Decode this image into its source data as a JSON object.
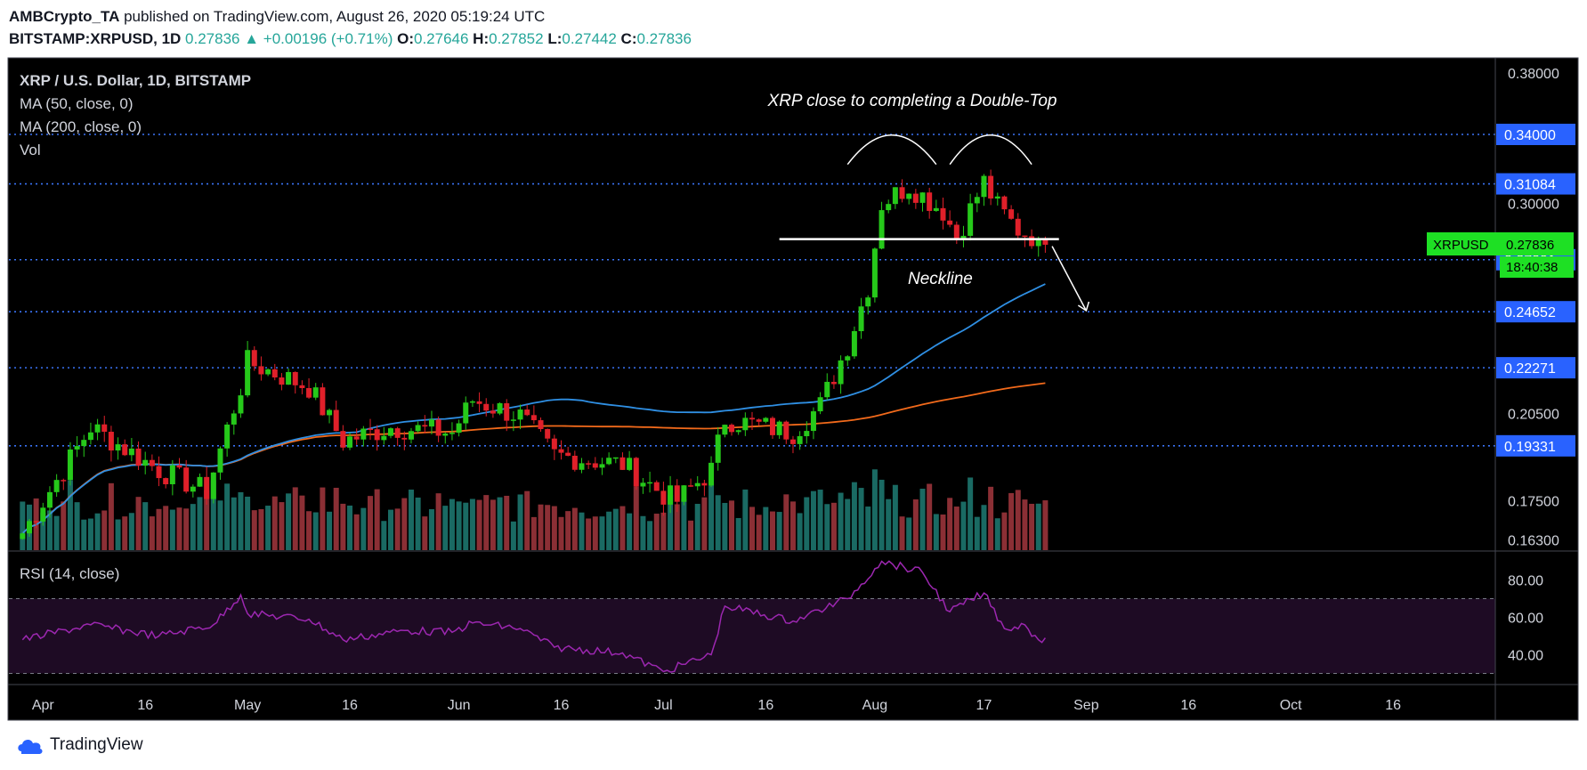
{
  "header": {
    "publisher": "AMBCrypto_TA",
    "published_text": "published on TradingView.com, August 26, 2020 05:19:24 UTC",
    "symbol": "BITSTAMP:XRPUSD, 1D",
    "last": "0.27836",
    "change_arrow": "▲",
    "change": "+0.00196 (+0.71%)",
    "o_label": "O:",
    "o": "0.27646",
    "h_label": "H:",
    "h": "0.27852",
    "l_label": "L:",
    "l": "0.27442",
    "c_label": "C:",
    "c": "0.27836"
  },
  "legend": {
    "title": "XRP / U.S. Dollar, 1D, BITSTAMP",
    "ma50": "MA (50, close, 0)",
    "ma200": "MA (200, close, 0)",
    "vol": "Vol",
    "rsi": "RSI (14, close)"
  },
  "annotations": {
    "title": "XRP close to completing a Double-Top",
    "neckline": "Neckline"
  },
  "price_badge": {
    "symbol": "XRPUSD",
    "price": "0.27836",
    "countdown": "18:40:38"
  },
  "footer": {
    "brand": "TradingView"
  },
  "colors": {
    "background": "#000000",
    "bull": "#26c91a",
    "bear": "#e0202a",
    "ma50": "#2f8fe3",
    "ma200": "#f26a1b",
    "hline": "#3a73f5",
    "rsi": "#9c27b0",
    "vol_bull": "#1a6a63",
    "vol_bear": "#8b2f35",
    "badge": "#2962ff",
    "price_badge": "#1ee024"
  },
  "chart_data": {
    "type": "candlestick",
    "timeframe": "1D",
    "y_scale": "log",
    "ylim": [
      0.16,
      0.39
    ],
    "price_ticks": [
      0.38,
      0.3,
      0.205,
      0.175,
      0.163
    ],
    "horizontal_levels": [
      "0.34000",
      "0.31084",
      "0.27091",
      "0.24652",
      "0.22271",
      "0.19331"
    ],
    "x_labels": [
      {
        "label": "Apr",
        "date": "2020-04-01"
      },
      {
        "label": "16",
        "date": "2020-04-16"
      },
      {
        "label": "May",
        "date": "2020-05-01"
      },
      {
        "label": "16",
        "date": "2020-05-16"
      },
      {
        "label": "Jun",
        "date": "2020-06-01"
      },
      {
        "label": "16",
        "date": "2020-06-16"
      },
      {
        "label": "Jul",
        "date": "2020-07-01"
      },
      {
        "label": "16",
        "date": "2020-07-16"
      },
      {
        "label": "Aug",
        "date": "2020-08-01"
      },
      {
        "label": "17",
        "date": "2020-08-17"
      },
      {
        "label": "Sep",
        "date": "2020-09-01"
      },
      {
        "label": "16",
        "date": "2020-09-16"
      },
      {
        "label": "Oct",
        "date": "2020-10-01"
      },
      {
        "label": "16",
        "date": "2020-10-16"
      }
    ],
    "x_range": [
      "2020-03-27",
      "2020-10-31"
    ],
    "key_closes": [
      {
        "date": "2020-03-29",
        "close": 0.165
      },
      {
        "date": "2020-04-08",
        "close": 0.2
      },
      {
        "date": "2020-04-18",
        "close": 0.185
      },
      {
        "date": "2020-04-25",
        "close": 0.178
      },
      {
        "date": "2020-04-30",
        "close": 0.215
      },
      {
        "date": "2020-05-01",
        "close": 0.225
      },
      {
        "date": "2020-05-10",
        "close": 0.215
      },
      {
        "date": "2020-05-15",
        "close": 0.195
      },
      {
        "date": "2020-05-22",
        "close": 0.2
      },
      {
        "date": "2020-05-31",
        "close": 0.198
      },
      {
        "date": "2020-06-03",
        "close": 0.21
      },
      {
        "date": "2020-06-10",
        "close": 0.204
      },
      {
        "date": "2020-06-15",
        "close": 0.19
      },
      {
        "date": "2020-06-25",
        "close": 0.187
      },
      {
        "date": "2020-07-01",
        "close": 0.177
      },
      {
        "date": "2020-07-03",
        "close": 0.175
      },
      {
        "date": "2020-07-08",
        "close": 0.185
      },
      {
        "date": "2020-07-10",
        "close": 0.203
      },
      {
        "date": "2020-07-20",
        "close": 0.198
      },
      {
        "date": "2020-07-24",
        "close": 0.208
      },
      {
        "date": "2020-07-28",
        "close": 0.232
      },
      {
        "date": "2020-07-31",
        "close": 0.258
      },
      {
        "date": "2020-08-02",
        "close": 0.3
      },
      {
        "date": "2020-08-06",
        "close": 0.31
      },
      {
        "date": "2020-08-11",
        "close": 0.296
      },
      {
        "date": "2020-08-13",
        "close": 0.282
      },
      {
        "date": "2020-08-17",
        "close": 0.312
      },
      {
        "date": "2020-08-19",
        "close": 0.298
      },
      {
        "date": "2020-08-22",
        "close": 0.286
      },
      {
        "date": "2020-08-24",
        "close": 0.283
      },
      {
        "date": "2020-08-25",
        "close": 0.2764
      },
      {
        "date": "2020-08-26",
        "close": 0.27836
      }
    ],
    "ma50_end": 0.27,
    "ma200_end": 0.2215,
    "rsi": {
      "ticks": [
        80.0,
        60.0,
        40.0
      ],
      "band": [
        30,
        70
      ],
      "ylim": [
        25,
        95
      ],
      "points": [
        {
          "date": "2020-03-29",
          "value": 48
        },
        {
          "date": "2020-04-08",
          "value": 56
        },
        {
          "date": "2020-04-18",
          "value": 50
        },
        {
          "date": "2020-04-26",
          "value": 56
        },
        {
          "date": "2020-04-30",
          "value": 72
        },
        {
          "date": "2020-05-01",
          "value": 62
        },
        {
          "date": "2020-05-10",
          "value": 59
        },
        {
          "date": "2020-05-15",
          "value": 48
        },
        {
          "date": "2020-05-24",
          "value": 53
        },
        {
          "date": "2020-05-31",
          "value": 52
        },
        {
          "date": "2020-06-03",
          "value": 57
        },
        {
          "date": "2020-06-10",
          "value": 54
        },
        {
          "date": "2020-06-15",
          "value": 44
        },
        {
          "date": "2020-06-25",
          "value": 41
        },
        {
          "date": "2020-07-01",
          "value": 31
        },
        {
          "date": "2020-07-08",
          "value": 40
        },
        {
          "date": "2020-07-10",
          "value": 66
        },
        {
          "date": "2020-07-20",
          "value": 58
        },
        {
          "date": "2020-07-28",
          "value": 70
        },
        {
          "date": "2020-08-01",
          "value": 86
        },
        {
          "date": "2020-08-02",
          "value": 90
        },
        {
          "date": "2020-08-08",
          "value": 84
        },
        {
          "date": "2020-08-12",
          "value": 63
        },
        {
          "date": "2020-08-17",
          "value": 73
        },
        {
          "date": "2020-08-20",
          "value": 54
        },
        {
          "date": "2020-08-23",
          "value": 56
        },
        {
          "date": "2020-08-25",
          "value": 48
        },
        {
          "date": "2020-08-26",
          "value": 49
        }
      ]
    }
  }
}
